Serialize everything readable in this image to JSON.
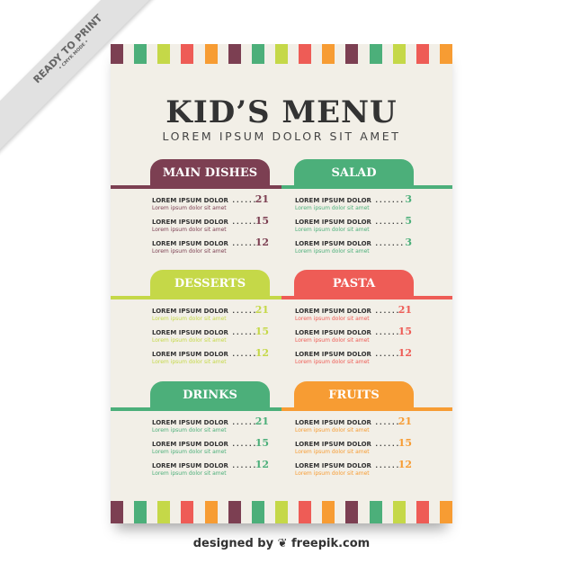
{
  "ribbon": {
    "line1": "READY TO PRINT",
    "line2": "• CMYK MODE •"
  },
  "colors": {
    "maroon": "#7c3f52",
    "green": "#4caf7a",
    "lime": "#c5d848",
    "red": "#ee5c56",
    "orange": "#f79c33",
    "background": "#f2efe7"
  },
  "title": "KID’S MENU",
  "subtitle": "LOREM IPSUM DOLOR SIT AMET",
  "sections": [
    {
      "name": "MAIN DISHES",
      "color": "#7c3f52",
      "items": [
        {
          "name": "LOREM IPSUM DOLOR",
          "desc": "Lorem ipsum dolor sit amet",
          "price": "21"
        },
        {
          "name": "LOREM IPSUM DOLOR",
          "desc": "Lorem ipsum dolor sit amet",
          "price": "15"
        },
        {
          "name": "LOREM IPSUM DOLOR",
          "desc": "Lorem ipsum dolor sit amet",
          "price": "12"
        }
      ]
    },
    {
      "name": "SALAD",
      "color": "#4caf7a",
      "items": [
        {
          "name": "LOREM IPSUM DOLOR",
          "desc": "Lorem ipsum dolor sit amet",
          "price": "3"
        },
        {
          "name": "LOREM IPSUM DOLOR",
          "desc": "Lorem ipsum dolor sit amet",
          "price": "5"
        },
        {
          "name": "LOREM IPSUM DOLOR",
          "desc": "Lorem ipsum dolor sit amet",
          "price": "3"
        }
      ]
    },
    {
      "name": "DESSERTS",
      "color": "#c5d848",
      "items": [
        {
          "name": "LOREM IPSUM DOLOR",
          "desc": "Lorem ipsum dolor sit amet",
          "price": "21"
        },
        {
          "name": "LOREM IPSUM DOLOR",
          "desc": "Lorem ipsum dolor sit amet",
          "price": "15"
        },
        {
          "name": "LOREM IPSUM DOLOR",
          "desc": "Lorem ipsum dolor sit amet",
          "price": "12"
        }
      ]
    },
    {
      "name": "PASTA",
      "color": "#ee5c56",
      "items": [
        {
          "name": "LOREM IPSUM DOLOR",
          "desc": "Lorem ipsum dolor sit amet",
          "price": "21"
        },
        {
          "name": "LOREM IPSUM DOLOR",
          "desc": "Lorem ipsum dolor sit amet",
          "price": "15"
        },
        {
          "name": "LOREM IPSUM DOLOR",
          "desc": "Lorem ipsum dolor sit amet",
          "price": "12"
        }
      ]
    },
    {
      "name": "DRINKS",
      "color": "#4caf7a",
      "items": [
        {
          "name": "LOREM IPSUM DOLOR",
          "desc": "Lorem ipsum dolor sit amet",
          "price": "21"
        },
        {
          "name": "LOREM IPSUM DOLOR",
          "desc": "Lorem ipsum dolor sit amet",
          "price": "15"
        },
        {
          "name": "LOREM IPSUM DOLOR",
          "desc": "Lorem ipsum dolor sit amet",
          "price": "12"
        }
      ]
    },
    {
      "name": "FRUITS",
      "color": "#f79c33",
      "items": [
        {
          "name": "LOREM IPSUM DOLOR",
          "desc": "Lorem ipsum dolor sit amet",
          "price": "21"
        },
        {
          "name": "LOREM IPSUM DOLOR",
          "desc": "Lorem ipsum dolor sit amet",
          "price": "15"
        },
        {
          "name": "LOREM IPSUM DOLOR",
          "desc": "Lorem ipsum dolor sit amet",
          "price": "12"
        }
      ]
    }
  ],
  "credit": "designed by ❦ freepik.com"
}
